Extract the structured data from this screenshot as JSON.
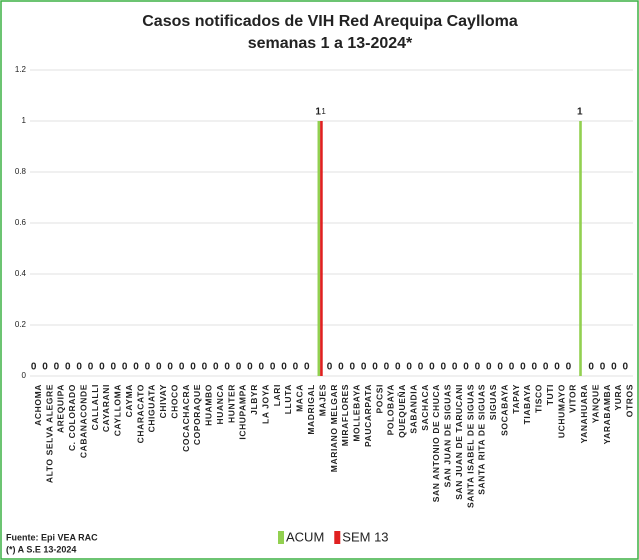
{
  "chart_data": {
    "type": "bar",
    "title": "Casos notificados de VIH Red Arequipa Caylloma",
    "subtitle": "semanas 1 a 13-2024*",
    "categories": [
      "ACHOMA",
      "ALTO SELVA ALEGRE",
      "AREQUIPA",
      "C. COLORADO",
      "CABANACONDE",
      "CALLALLI",
      "CAYARANI",
      "CAYLLOMA",
      "CAYMA",
      "CHARACATO",
      "CHIGUATA",
      "CHIVAY",
      "CHOCO",
      "COCACHACRA",
      "COPORAQUE",
      "HUAMBO",
      "HUANCA",
      "HUNTER",
      "ICHUPAMPA",
      "JLBYR",
      "LA JOYA",
      "LARI",
      "LLUTA",
      "MACA",
      "MADRIGAL",
      "MAJES",
      "MARIANO MELGAR",
      "MIRAFLORES",
      "MOLLEBAYA",
      "PAUCARPATA",
      "POCSI",
      "POLOBAYA",
      "QUEQUEÑA",
      "SABANDIA",
      "SACHACA",
      "SAN ANTONIO DE CHUCA",
      "SAN JUAN DE SIGUAS",
      "SAN JUAN DE TARUCANI",
      "SANTA ISABEL DE SIGUAS",
      "SANTA RITA DE SIGUAS",
      "SIGUAS",
      "SOCABAYA",
      "TAPAY",
      "TIABAYA",
      "TISCO",
      "TUTI",
      "UCHUMAYO",
      "VITOR",
      "YANAHUARA",
      "YANQUE",
      "YARABAMBA",
      "YURA",
      "OTROS"
    ],
    "series": [
      {
        "name": "ACUM",
        "color": "#92d050",
        "values": [
          0,
          0,
          0,
          0,
          0,
          0,
          0,
          0,
          0,
          0,
          0,
          0,
          0,
          0,
          0,
          0,
          0,
          0,
          0,
          0,
          0,
          0,
          0,
          0,
          0,
          1,
          0,
          0,
          0,
          0,
          0,
          0,
          0,
          0,
          0,
          0,
          0,
          0,
          0,
          0,
          0,
          0,
          0,
          0,
          0,
          0,
          0,
          0,
          1,
          0,
          0,
          0,
          0
        ]
      },
      {
        "name": "SEM 13",
        "color": "#e02020",
        "values": [
          0,
          0,
          0,
          0,
          0,
          0,
          0,
          0,
          0,
          0,
          0,
          0,
          0,
          0,
          0,
          0,
          0,
          0,
          0,
          0,
          0,
          0,
          0,
          0,
          0,
          1,
          0,
          0,
          0,
          0,
          0,
          0,
          0,
          0,
          0,
          0,
          0,
          0,
          0,
          0,
          0,
          0,
          0,
          0,
          0,
          0,
          0,
          0,
          0,
          0,
          0,
          0,
          0
        ]
      }
    ],
    "ylim": [
      0,
      1.2
    ],
    "yticks": [
      0,
      0.2,
      0.4,
      0.6,
      0.8,
      1,
      1.2
    ],
    "grid": true,
    "source": "Fuente: Epi VEA RAC",
    "note": "(*) A S.E 13-2024"
  }
}
